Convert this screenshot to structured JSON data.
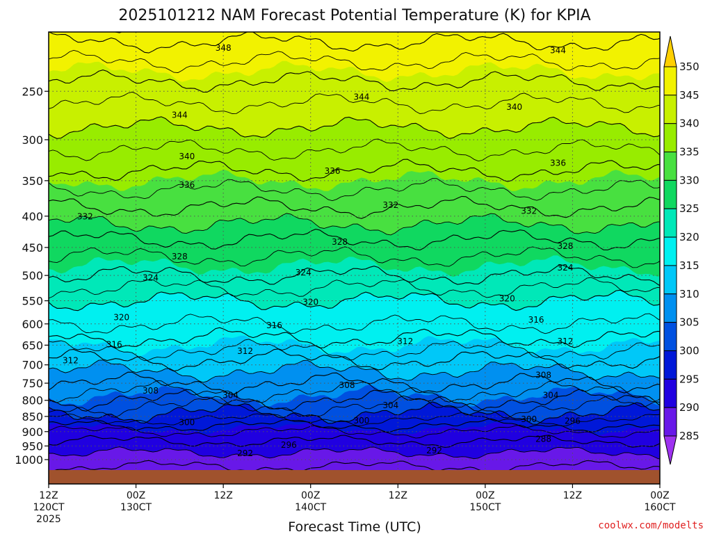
{
  "header": {
    "title": "2025101212 NAM Forecast Potential Temperature (K) for KPIA"
  },
  "credit": "coolwx.com/modelts",
  "colors": {
    "ground": "#a0522d",
    "contour": "#000000",
    "grid": "#555555"
  },
  "chart_data": {
    "type": "heatmap",
    "title": "2025101212 NAM Forecast Potential Temperature (K) for KPIA",
    "xlabel": "Forecast Time (UTC)",
    "ylabel": "",
    "x_ticks": [
      {
        "hour": 0,
        "line1": "12Z",
        "line2": "120CT",
        "line3": "2025"
      },
      {
        "hour": 12,
        "line1": "00Z",
        "line2": "130CT",
        "line3": ""
      },
      {
        "hour": 24,
        "line1": "12Z",
        "line2": "",
        "line3": ""
      },
      {
        "hour": 36,
        "line1": "00Z",
        "line2": "140CT",
        "line3": ""
      },
      {
        "hour": 48,
        "line1": "12Z",
        "line2": "",
        "line3": ""
      },
      {
        "hour": 60,
        "line1": "00Z",
        "line2": "150CT",
        "line3": ""
      },
      {
        "hour": 72,
        "line1": "12Z",
        "line2": "",
        "line3": ""
      },
      {
        "hour": 84,
        "line1": "00Z",
        "line2": "160CT",
        "line3": ""
      }
    ],
    "xlim_hours": [
      0,
      84
    ],
    "y_levels_hpa": [
      250,
      300,
      350,
      400,
      450,
      500,
      550,
      600,
      650,
      700,
      750,
      800,
      850,
      900,
      950,
      1000
    ],
    "y_axis": "pressure-log",
    "ylim_hpa": [
      200,
      1040
    ],
    "grid": true,
    "colorbar": {
      "labels": [
        350,
        345,
        340,
        335,
        330,
        325,
        320,
        315,
        310,
        305,
        300,
        295,
        290,
        285
      ],
      "colors": [
        "#ffd000",
        "#f2f200",
        "#c8f000",
        "#98ec00",
        "#48e040",
        "#10d860",
        "#00e8b8",
        "#00f0f0",
        "#00c8f8",
        "#0090f0",
        "#0050e0",
        "#0018d8",
        "#2000e0",
        "#6818e8",
        "#9e32f0"
      ],
      "placement": "right"
    },
    "theta_profile": [
      {
        "p": 1000,
        "theta": 289
      },
      {
        "p": 950,
        "theta": 291
      },
      {
        "p": 900,
        "theta": 294
      },
      {
        "p": 850,
        "theta": 299
      },
      {
        "p": 800,
        "theta": 304
      },
      {
        "p": 750,
        "theta": 308
      },
      {
        "p": 700,
        "theta": 311
      },
      {
        "p": 650,
        "theta": 315
      },
      {
        "p": 600,
        "theta": 318
      },
      {
        "p": 550,
        "theta": 320
      },
      {
        "p": 500,
        "theta": 324
      },
      {
        "p": 450,
        "theta": 327
      },
      {
        "p": 400,
        "theta": 331
      },
      {
        "p": 350,
        "theta": 335
      },
      {
        "p": 300,
        "theta": 339
      },
      {
        "p": 250,
        "theta": 343
      },
      {
        "p": 200,
        "theta": 349
      }
    ],
    "contour_labels": [
      {
        "value": 348,
        "hour": 24,
        "p": 212
      },
      {
        "value": 344,
        "hour": 70,
        "p": 214
      },
      {
        "value": 344,
        "hour": 43,
        "p": 255
      },
      {
        "value": 344,
        "hour": 18,
        "p": 273
      },
      {
        "value": 340,
        "hour": 64,
        "p": 265
      },
      {
        "value": 340,
        "hour": 19,
        "p": 319
      },
      {
        "value": 336,
        "hour": 39,
        "p": 337
      },
      {
        "value": 336,
        "hour": 70,
        "p": 327
      },
      {
        "value": 336,
        "hour": 19,
        "p": 355
      },
      {
        "value": 332,
        "hour": 47,
        "p": 383
      },
      {
        "value": 332,
        "hour": 5,
        "p": 400
      },
      {
        "value": 332,
        "hour": 66,
        "p": 392
      },
      {
        "value": 328,
        "hour": 40,
        "p": 440
      },
      {
        "value": 328,
        "hour": 71,
        "p": 447
      },
      {
        "value": 328,
        "hour": 18,
        "p": 465
      },
      {
        "value": 324,
        "hour": 14,
        "p": 504
      },
      {
        "value": 324,
        "hour": 35,
        "p": 494
      },
      {
        "value": 324,
        "hour": 71,
        "p": 485
      },
      {
        "value": 320,
        "hour": 36,
        "p": 552
      },
      {
        "value": 320,
        "hour": 63,
        "p": 545
      },
      {
        "value": 320,
        "hour": 10,
        "p": 585
      },
      {
        "value": 316,
        "hour": 31,
        "p": 603
      },
      {
        "value": 316,
        "hour": 67,
        "p": 590
      },
      {
        "value": 316,
        "hour": 9,
        "p": 648
      },
      {
        "value": 312,
        "hour": 49,
        "p": 640
      },
      {
        "value": 312,
        "hour": 71,
        "p": 640
      },
      {
        "value": 312,
        "hour": 27,
        "p": 664
      },
      {
        "value": 312,
        "hour": 3,
        "p": 688
      },
      {
        "value": 308,
        "hour": 41,
        "p": 755
      },
      {
        "value": 308,
        "hour": 68,
        "p": 727
      },
      {
        "value": 308,
        "hour": 14,
        "p": 771
      },
      {
        "value": 304,
        "hour": 25,
        "p": 784
      },
      {
        "value": 304,
        "hour": 47,
        "p": 814
      },
      {
        "value": 304,
        "hour": 69,
        "p": 784
      },
      {
        "value": 300,
        "hour": 19,
        "p": 868
      },
      {
        "value": 300,
        "hour": 43,
        "p": 862
      },
      {
        "value": 300,
        "hour": 66,
        "p": 858
      },
      {
        "value": 296,
        "hour": 72,
        "p": 864
      },
      {
        "value": 296,
        "hour": 33,
        "p": 945
      },
      {
        "value": 292,
        "hour": 27,
        "p": 975
      },
      {
        "value": 292,
        "hour": 53,
        "p": 965
      },
      {
        "value": 288,
        "hour": 68,
        "p": 924
      }
    ]
  }
}
